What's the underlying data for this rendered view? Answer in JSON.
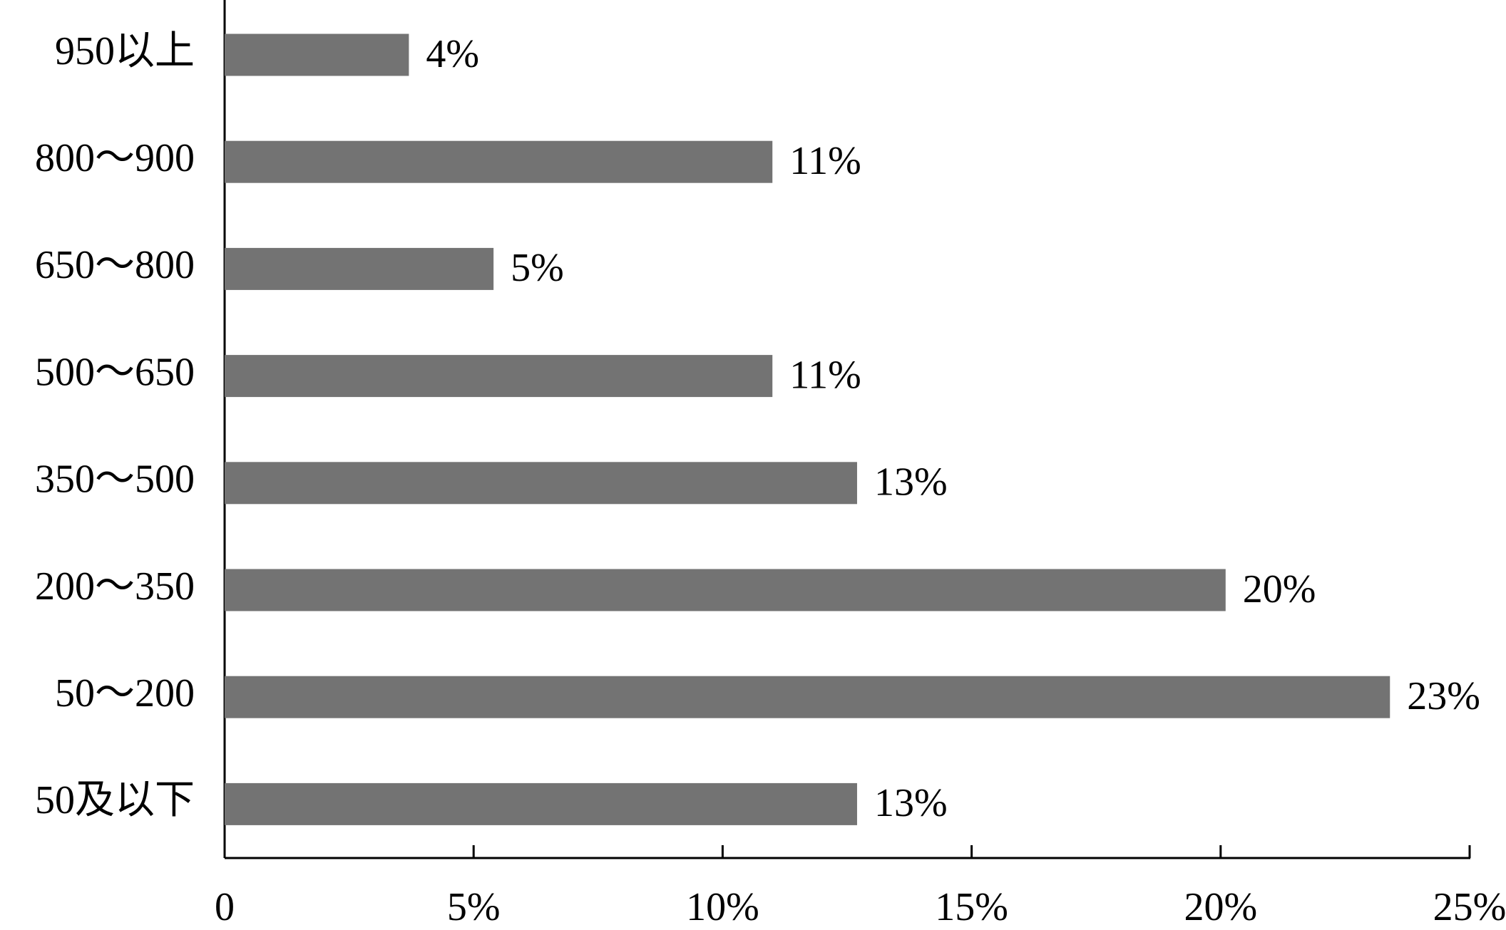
{
  "chart_data": {
    "type": "bar",
    "orientation": "horizontal",
    "categories": [
      "950以上",
      "800～900",
      "650～800",
      "500～650",
      "350～500",
      "200～350",
      "50～200",
      "50及以下"
    ],
    "values": [
      3.7,
      11,
      5.4,
      11,
      12.7,
      20.1,
      23.4,
      12.7
    ],
    "value_labels": [
      "4%",
      "11%",
      "5%",
      "11%",
      "13%",
      "20%",
      "23%",
      "13%"
    ],
    "color": "#737373",
    "xlim": [
      0,
      25
    ],
    "xticks": [
      0,
      {
        "value": 5,
        "label": "5%"
      },
      {
        "value": 10,
        "label": "10%"
      },
      {
        "value": 15,
        "label": "15%"
      },
      {
        "value": 20,
        "label": "20%"
      },
      {
        "value": 25,
        "label": "25%"
      }
    ],
    "grid": false
  }
}
